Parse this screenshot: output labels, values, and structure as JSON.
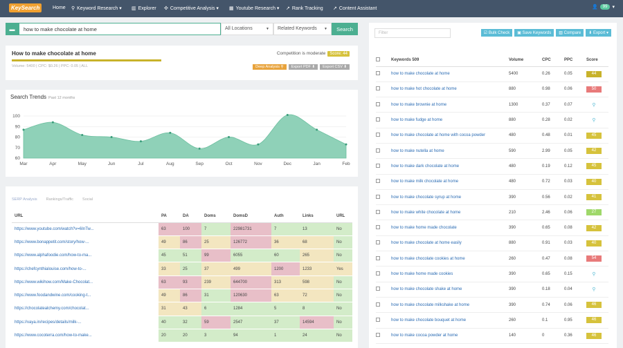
{
  "nav": {
    "logo": "KeySearch",
    "items": [
      {
        "icon": "home-icon",
        "glyph": "",
        "label": "Home",
        "left": 73
      },
      {
        "icon": "search-icon",
        "glyph": "⚲",
        "label": "Keyword Research ▾",
        "left": 103
      },
      {
        "icon": "bar-chart-icon",
        "glyph": "▥",
        "label": "Explorer",
        "left": 190
      },
      {
        "icon": "tools-icon",
        "glyph": "✣",
        "label": "Competitive Analysis ▾",
        "left": 237
      },
      {
        "icon": "calendar-icon",
        "glyph": "▦",
        "label": "Youtube Research ▾",
        "left": 331
      },
      {
        "icon": "line-chart-icon",
        "glyph": "↗",
        "label": "Rank Tracking",
        "left": 413
      },
      {
        "icon": "line-chart-icon",
        "glyph": "↗",
        "label": "Content Assistant",
        "left": 481
      }
    ],
    "user_badge": "99"
  },
  "search": {
    "value": "how to make chocolate at home",
    "location": "All Locations",
    "mode": "Related Keywords",
    "button": "Search"
  },
  "summary": {
    "title": "How to make chocolate at home",
    "competition": "Competition is moderate",
    "score": "Score: 44",
    "meta": "Volume: 5400 | CPC: $0.26 | PPC: 0.05 | ALL",
    "btn_deep": "Deep Analysis ⚲",
    "btn_pdf": "Export PDF ⬇",
    "btn_csv": "Export CSV ⬇"
  },
  "trends": {
    "title": "Search Trends",
    "subtitle": "Past 12 months"
  },
  "chart_data": {
    "type": "area",
    "title": "Search Trends",
    "categories": [
      "Mar",
      "Apr",
      "May",
      "Jun",
      "Jul",
      "Aug",
      "Sep",
      "Oct",
      "Nov",
      "Dec",
      "Jan",
      "Feb"
    ],
    "values": [
      87,
      94,
      82,
      80,
      76,
      84,
      69,
      80,
      73,
      101,
      87,
      73
    ],
    "ylim": [
      60,
      100
    ],
    "yticks": [
      60,
      70,
      80,
      90,
      100
    ],
    "color": "#8fd1b8"
  },
  "serp": {
    "tabs": [
      "SERP Analysis",
      "Rankings/Traffic",
      "Social"
    ],
    "headers": [
      "URL",
      "PA",
      "DA",
      "Doms",
      "DomsD",
      "Auth",
      "Links",
      "URL"
    ],
    "rows": [
      [
        "https://www.youtube.com/watch?v=6InTw...",
        "63",
        "100",
        "7",
        "22981731",
        "7",
        "13",
        "No"
      ],
      [
        "https://www.bonappetit.com/story/how-...",
        "49",
        "86",
        "25",
        "126772",
        "36",
        "68",
        "No"
      ],
      [
        "https://www.alphafoodie.com/how-to-ma...",
        "45",
        "51",
        "99",
        "6055",
        "60",
        "265",
        "No"
      ],
      [
        "https://chefcynthialouise.com/how-to-...",
        "33",
        "25",
        "37",
        "499",
        "1200",
        "1233",
        "Yes"
      ],
      [
        "https://www.wikihow.com/Make-Chocolat...",
        "63",
        "93",
        "239",
        "644700",
        "313",
        "598",
        "No"
      ],
      [
        "https://www.foodandwine.com/cooking-t...",
        "49",
        "86",
        "31",
        "120630",
        "63",
        "72",
        "No"
      ],
      [
        "https://chocolatealchemy.com/chocolat...",
        "31",
        "43",
        "6",
        "1284",
        "5",
        "8",
        "No"
      ],
      [
        "https://vaya.in/recipes/details/milk-...",
        "40",
        "32",
        "59",
        "2547",
        "37",
        "14594",
        "No"
      ],
      [
        "https://www.cocoterra.com/how-to-make...",
        "20",
        "20",
        "3",
        "94",
        "1",
        "24",
        "No"
      ]
    ],
    "colors": [
      [
        "g",
        "r",
        "r",
        "g",
        "r",
        "g",
        "g",
        "g"
      ],
      [
        "g",
        "y",
        "r",
        "y",
        "r",
        "y",
        "y",
        "g"
      ],
      [
        "g",
        "g",
        "g",
        "r",
        "g",
        "g",
        "y",
        "g"
      ],
      [
        "g",
        "y",
        "g",
        "y",
        "y",
        "r",
        "y",
        "y"
      ],
      [
        "g",
        "r",
        "r",
        "y",
        "r",
        "y",
        "y",
        "g"
      ],
      [
        "g",
        "y",
        "r",
        "g",
        "r",
        "y",
        "y",
        "g"
      ],
      [
        "g",
        "y",
        "y",
        "g",
        "g",
        "g",
        "g",
        "g"
      ],
      [
        "g",
        "g",
        "g",
        "r",
        "g",
        "g",
        "r",
        "g"
      ],
      [
        "g",
        "g",
        "g",
        "g",
        "g",
        "g",
        "g",
        "g"
      ]
    ]
  },
  "keywords": {
    "filter_placeholder": "Filter",
    "btn_bulk": "Bulk Check",
    "btn_save": "Save Keywords",
    "btn_compare": "Compare",
    "btn_export": "Export ▾",
    "headers": [
      "Keywords 509",
      "Volume",
      "CPC",
      "PPC",
      "Score"
    ],
    "rows": [
      {
        "k": "how to make chocolate at home",
        "v": "5400",
        "c": "0.26",
        "p": "0.05",
        "s": "44",
        "col": "#c8b22a"
      },
      {
        "k": "how to make hot chocolate at home",
        "v": "880",
        "c": "0.98",
        "p": "0.06",
        "s": "50",
        "col": "#e87a7a"
      },
      {
        "k": "how to make brownie at home",
        "v": "1300",
        "c": "0.37",
        "p": "0.07",
        "s": "",
        "col": ""
      },
      {
        "k": "how to make fudge at home",
        "v": "880",
        "c": "0.28",
        "p": "0.02",
        "s": "",
        "col": ""
      },
      {
        "k": "how to make chocolate at home with cocoa powder",
        "v": "480",
        "c": "0.48",
        "p": "0.01",
        "s": "45",
        "col": "#d6c23c"
      },
      {
        "k": "how to make nutella at home",
        "v": "590",
        "c": "2.99",
        "p": "0.05",
        "s": "42",
        "col": "#d6c23c"
      },
      {
        "k": "how to make dark chocolate at home",
        "v": "480",
        "c": "0.19",
        "p": "0.12",
        "s": "45",
        "col": "#d6c23c"
      },
      {
        "k": "how to make milk chocolate at home",
        "v": "480",
        "c": "0.72",
        "p": "0.03",
        "s": "40",
        "col": "#d6c23c"
      },
      {
        "k": "how to make chocolate syrup at home",
        "v": "390",
        "c": "0.56",
        "p": "0.02",
        "s": "41",
        "col": "#d6c23c"
      },
      {
        "k": "how to make white chocolate at home",
        "v": "210",
        "c": "2.46",
        "p": "0.06",
        "s": "27",
        "col": "#9fd86a"
      },
      {
        "k": "how to make home made chocolate",
        "v": "390",
        "c": "0.65",
        "p": "0.08",
        "s": "42",
        "col": "#d6c23c"
      },
      {
        "k": "how to make chocolate at home easily",
        "v": "880",
        "c": "0.91",
        "p": "0.03",
        "s": "40",
        "col": "#d6c23c"
      },
      {
        "k": "how to make chocolate cookies at home",
        "v": "260",
        "c": "0.47",
        "p": "0.08",
        "s": "54",
        "col": "#e87a7a"
      },
      {
        "k": "how to make home made cookies",
        "v": "390",
        "c": "0.65",
        "p": "0.15",
        "s": "",
        "col": ""
      },
      {
        "k": "how to make chocolate shake at home",
        "v": "390",
        "c": "0.18",
        "p": "0.04",
        "s": "",
        "col": ""
      },
      {
        "k": "how to make chocolate milkshake at home",
        "v": "390",
        "c": "0.74",
        "p": "0.06",
        "s": "46",
        "col": "#d6c23c"
      },
      {
        "k": "how to make chocolate bouquet at home",
        "v": "260",
        "c": "0.1",
        "p": "0.95",
        "s": "46",
        "col": "#d6c23c"
      },
      {
        "k": "how to make cocoa powder at home",
        "v": "140",
        "c": "0",
        "p": "0.36",
        "s": "46",
        "col": "#d6c23c"
      }
    ]
  }
}
